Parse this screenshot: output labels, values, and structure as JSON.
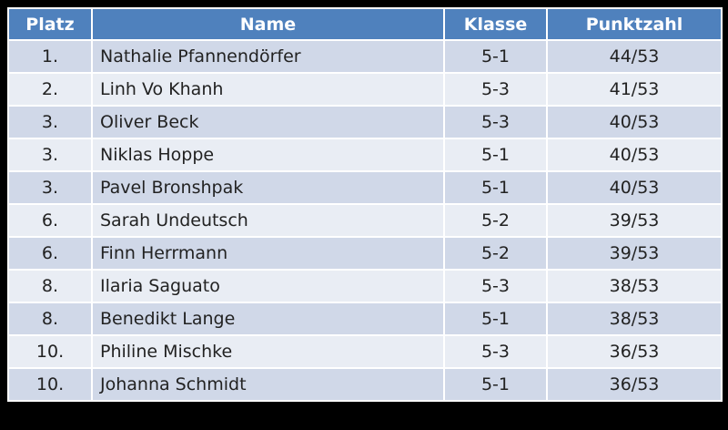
{
  "table": {
    "header": [
      "Platz",
      "Name",
      "Klasse",
      "Punktzahl"
    ],
    "rows": [
      [
        "1.",
        "Nathalie Pfannendörfer",
        "5-1",
        "44/53"
      ],
      [
        "2.",
        "Linh Vo Khanh",
        "5-3",
        "41/53"
      ],
      [
        "3.",
        "Oliver Beck",
        "5-3",
        "40/53"
      ],
      [
        "3.",
        "Niklas Hoppe",
        "5-1",
        "40/53"
      ],
      [
        "3.",
        "Pavel Bronshpak",
        "5-1",
        "40/53"
      ],
      [
        "6.",
        "Sarah Undeutsch",
        "5-2",
        "39/53"
      ],
      [
        "6.",
        "Finn Herrmann",
        "5-2",
        "39/53"
      ],
      [
        "8.",
        "Ilaria Saguato",
        "5-3",
        "38/53"
      ],
      [
        "8.",
        "Benedikt Lange",
        "5-1",
        "38/53"
      ],
      [
        "10.",
        "Philine Mischke",
        "5-3",
        "36/53"
      ],
      [
        "10.",
        "Johanna Schmidt",
        "5-1",
        "36/53"
      ]
    ]
  }
}
